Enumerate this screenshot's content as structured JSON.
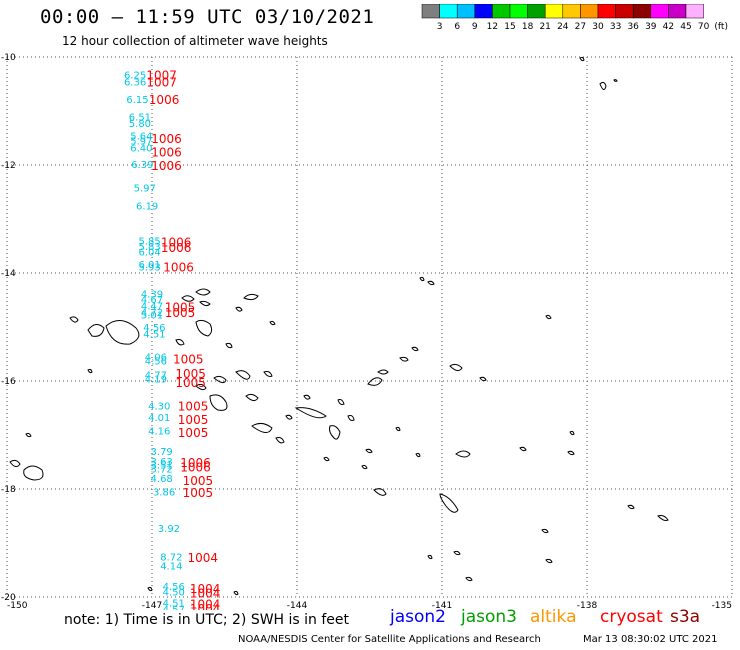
{
  "header": {
    "title": "00:00 – 11:59 UTC 03/10/2021",
    "subtitle": "12 hour collection of altimeter wave heights"
  },
  "color_scale": {
    "labels": [
      "3",
      "6",
      "9",
      "12",
      "15",
      "18",
      "21",
      "24",
      "27",
      "30",
      "33",
      "36",
      "39",
      "42",
      "45",
      "70",
      "(ft)"
    ],
    "colors": [
      "#7f7f7f",
      "#00ffff",
      "#00bfff",
      "#0000ff",
      "#00c800",
      "#00ff00",
      "#00a000",
      "#ffff00",
      "#ffc800",
      "#ff9600",
      "#ff0000",
      "#c80000",
      "#8b0000",
      "#ff00ff",
      "#c800c8",
      "#ffb0ff"
    ]
  },
  "map": {
    "lon_labels": [
      "-150",
      "-147",
      "-144",
      "-141",
      "-138",
      "-135"
    ],
    "lat_labels": [
      "-10",
      "-12",
      "-14",
      "-16",
      "-18",
      "-20"
    ],
    "lon_range": [
      -150,
      -135
    ],
    "lat_range": [
      -20,
      -10
    ],
    "grid": true,
    "observation_colors": {
      "swh": "#00c8e6",
      "pressure": "#ff0000"
    },
    "swh_observations": [
      {
        "lat": -10.32,
        "lon": -147.35,
        "value": "6.25"
      },
      {
        "lat": -10.45,
        "lon": -147.35,
        "value": "6.36"
      },
      {
        "lat": -10.78,
        "lon": -147.3,
        "value": "6.15"
      },
      {
        "lat": -11.1,
        "lon": -147.25,
        "value": "6.51"
      },
      {
        "lat": -11.22,
        "lon": -147.25,
        "value": "5.80"
      },
      {
        "lat": -11.45,
        "lon": -147.22,
        "value": "5.64"
      },
      {
        "lat": -11.55,
        "lon": -147.22,
        "value": "5.97"
      },
      {
        "lat": -11.68,
        "lon": -147.22,
        "value": "6.40"
      },
      {
        "lat": -11.98,
        "lon": -147.2,
        "value": "6.39"
      },
      {
        "lat": -12.42,
        "lon": -147.15,
        "value": "5.97"
      },
      {
        "lat": -12.75,
        "lon": -147.1,
        "value": "6.19"
      },
      {
        "lat": -13.4,
        "lon": -147.05,
        "value": "5.85"
      },
      {
        "lat": -13.5,
        "lon": -147.05,
        "value": "5.83"
      },
      {
        "lat": -13.6,
        "lon": -147.05,
        "value": "6.04"
      },
      {
        "lat": -13.83,
        "lon": -147.05,
        "value": "6.01"
      },
      {
        "lat": -13.88,
        "lon": -147.05,
        "value": "5.93"
      },
      {
        "lat": -14.38,
        "lon": -147.0,
        "value": "4.39"
      },
      {
        "lat": -14.48,
        "lon": -147.0,
        "value": "4.67"
      },
      {
        "lat": -14.6,
        "lon": -147.0,
        "value": "4.47"
      },
      {
        "lat": -14.72,
        "lon": -147.0,
        "value": "4.72"
      },
      {
        "lat": -14.77,
        "lon": -147.0,
        "value": "5.01"
      },
      {
        "lat": -15.0,
        "lon": -146.95,
        "value": "4.56"
      },
      {
        "lat": -15.12,
        "lon": -146.95,
        "value": "4.51"
      },
      {
        "lat": -15.55,
        "lon": -146.92,
        "value": "4.06"
      },
      {
        "lat": -15.62,
        "lon": -146.92,
        "value": "4.56"
      },
      {
        "lat": -15.88,
        "lon": -146.92,
        "value": "4.77"
      },
      {
        "lat": -15.95,
        "lon": -146.92,
        "value": "4.19"
      },
      {
        "lat": -16.45,
        "lon": -146.85,
        "value": "4.30"
      },
      {
        "lat": -16.67,
        "lon": -146.85,
        "value": "4.01"
      },
      {
        "lat": -16.92,
        "lon": -146.85,
        "value": "4.16"
      },
      {
        "lat": -17.3,
        "lon": -146.8,
        "value": "3.79"
      },
      {
        "lat": -17.48,
        "lon": -146.8,
        "value": "3.63"
      },
      {
        "lat": -17.55,
        "lon": -146.8,
        "value": "3.51"
      },
      {
        "lat": -17.62,
        "lon": -146.8,
        "value": "3.72"
      },
      {
        "lat": -17.8,
        "lon": -146.8,
        "value": "4.68"
      },
      {
        "lat": -18.05,
        "lon": -146.75,
        "value": "3.86"
      },
      {
        "lat": -18.72,
        "lon": -146.65,
        "value": "3.92"
      },
      {
        "lat": -19.25,
        "lon": -146.6,
        "value": "8.72"
      },
      {
        "lat": -19.42,
        "lon": -146.6,
        "value": "4.14"
      },
      {
        "lat": -19.8,
        "lon": -146.55,
        "value": "4.56"
      },
      {
        "lat": -19.9,
        "lon": -146.55,
        "value": "4.50"
      },
      {
        "lat": -20.1,
        "lon": -146.55,
        "value": "4.51"
      },
      {
        "lat": -20.22,
        "lon": -146.55,
        "value": "4.57"
      }
    ],
    "pressure_observations": [
      {
        "lat": -10.32,
        "lon": -146.8,
        "value": "1007"
      },
      {
        "lat": -10.45,
        "lon": -146.8,
        "value": "1007"
      },
      {
        "lat": -10.78,
        "lon": -146.75,
        "value": "1006"
      },
      {
        "lat": -11.5,
        "lon": -146.7,
        "value": "1006"
      },
      {
        "lat": -11.75,
        "lon": -146.7,
        "value": "1006"
      },
      {
        "lat": -12.0,
        "lon": -146.7,
        "value": "1006"
      },
      {
        "lat": -13.42,
        "lon": -146.5,
        "value": "1006"
      },
      {
        "lat": -13.52,
        "lon": -146.5,
        "value": "1006"
      },
      {
        "lat": -13.88,
        "lon": -146.45,
        "value": "1006"
      },
      {
        "lat": -14.62,
        "lon": -146.42,
        "value": "1005"
      },
      {
        "lat": -14.72,
        "lon": -146.42,
        "value": "1005"
      },
      {
        "lat": -15.58,
        "lon": -146.25,
        "value": "1005"
      },
      {
        "lat": -15.85,
        "lon": -146.2,
        "value": "1005"
      },
      {
        "lat": -16.02,
        "lon": -146.2,
        "value": "1005"
      },
      {
        "lat": -16.45,
        "lon": -146.15,
        "value": "1005"
      },
      {
        "lat": -16.7,
        "lon": -146.15,
        "value": "1005"
      },
      {
        "lat": -16.94,
        "lon": -146.15,
        "value": "1005"
      },
      {
        "lat": -17.5,
        "lon": -146.1,
        "value": "1006"
      },
      {
        "lat": -17.58,
        "lon": -146.1,
        "value": "1006"
      },
      {
        "lat": -17.83,
        "lon": -146.05,
        "value": "1005"
      },
      {
        "lat": -18.06,
        "lon": -146.05,
        "value": "1005"
      },
      {
        "lat": -19.26,
        "lon": -145.95,
        "value": "1004"
      },
      {
        "lat": -19.83,
        "lon": -145.9,
        "value": "1004"
      },
      {
        "lat": -19.92,
        "lon": -145.9,
        "value": "1004"
      },
      {
        "lat": -20.12,
        "lon": -145.9,
        "value": "1004"
      },
      {
        "lat": -20.2,
        "lon": -145.9,
        "value": "1004"
      }
    ]
  },
  "note": "note: 1) Time is in UTC; 2) SWH is in feet",
  "satellites": [
    {
      "name": "jason2",
      "color": "#0000ff"
    },
    {
      "name": "jason3",
      "color": "#00a000"
    },
    {
      "name": "altika",
      "color": "#ff9600"
    },
    {
      "name": "cryosat",
      "color": "#ff0000"
    },
    {
      "name": "s3a",
      "color": "#8b0000"
    }
  ],
  "footer": {
    "credit": "NOAA/NESDIS Center for Satellite Applications and Research",
    "timestamp": "Mar 13 08:30:02 UTC 2021"
  }
}
